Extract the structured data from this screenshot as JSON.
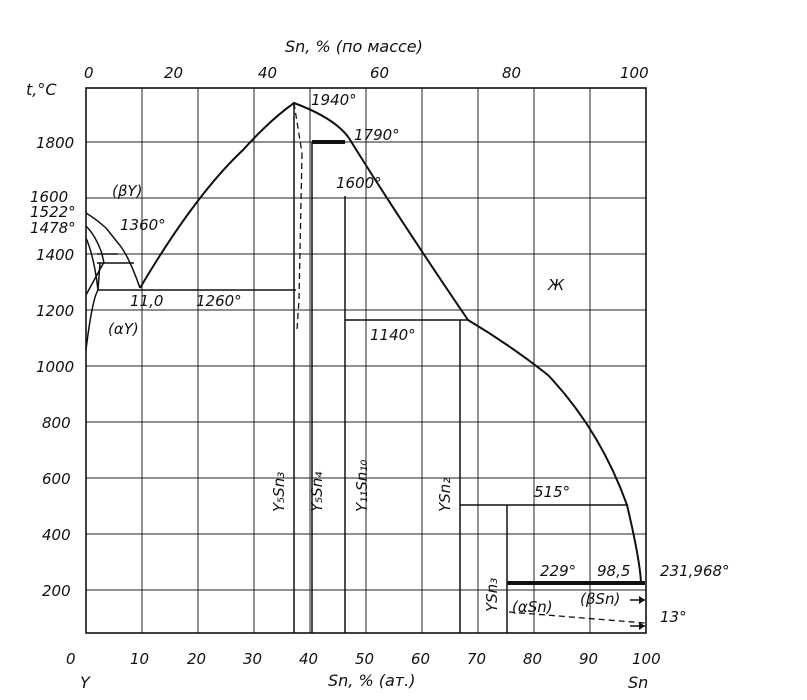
{
  "axes": {
    "top_title": "Sn, % (по массе)",
    "bottom_title": "Sn, % (ат.)",
    "y_title": "t,°C",
    "top_ticks": [
      "0",
      "20",
      "40",
      "60",
      "80",
      "100"
    ],
    "bottom_ticks": [
      "0",
      "10",
      "20",
      "30",
      "40",
      "50",
      "60",
      "70",
      "80",
      "90",
      "100"
    ],
    "y_ticks": [
      "1800",
      "1600",
      "1400",
      "1200",
      "1000",
      "800",
      "600",
      "400",
      "200"
    ],
    "left_element": "Y",
    "right_element": "Sn"
  },
  "temperatures": {
    "t1940": "1940°",
    "t1790": "1790°",
    "t1600": "1600°",
    "t1522": "1522°",
    "t1478": "1478°",
    "t1360": "1360°",
    "t1260": "1260°",
    "t1140": "1140°",
    "t515": "515°",
    "t229": "229°",
    "t231968": "231,968°",
    "t13": "13°"
  },
  "compositions": {
    "c11": "11,0",
    "c985": "98,5"
  },
  "phases": {
    "beta_y": "(βY)",
    "alpha_y": "(αY)",
    "liquid": "Ж",
    "alpha_sn": "(αSn)",
    "beta_sn": "(βSn)",
    "y5sn3": "Y₅Sn₃",
    "y5sn4": "Y₅Sn₄",
    "y11sn10": "Y₁₁Sn₁₀",
    "ysn2": "YSn₂",
    "ysn3": "YSn₃"
  }
}
